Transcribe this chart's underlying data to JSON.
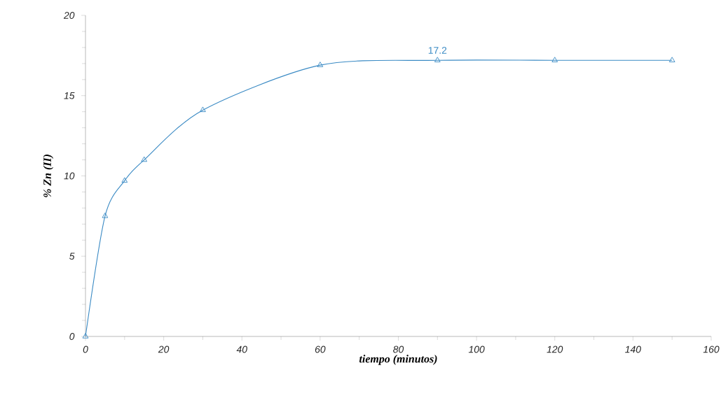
{
  "chart_data": {
    "type": "line",
    "xlabel": "tiempo (minutos)",
    "ylabel": "% Zn (II)",
    "series": [
      {
        "color": "#3a8ac4",
        "x": [
          0,
          5,
          10,
          15,
          30,
          60,
          90,
          120,
          150
        ],
        "values": [
          0,
          7.5,
          9.7,
          11.0,
          14.1,
          16.9,
          17.2,
          17.2,
          17.2
        ]
      }
    ],
    "marker": "triangle",
    "line_style": "solid",
    "xlim": [
      0,
      160
    ],
    "ylim": [
      0,
      20
    ],
    "xticks": [
      0,
      20,
      40,
      60,
      80,
      100,
      120,
      140,
      160
    ],
    "yticks": [
      0,
      5,
      10,
      15,
      20
    ],
    "annotations": [
      {
        "text": "17.2",
        "x": 90,
        "y": 17.2
      }
    ]
  }
}
